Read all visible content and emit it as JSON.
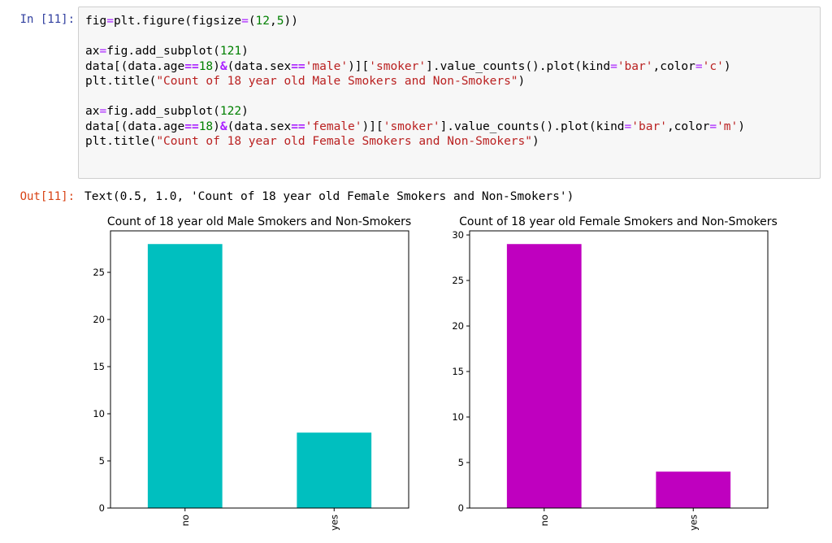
{
  "cell": {
    "in_prompt": "In [11]:",
    "out_prompt": "Out[11]:",
    "code_lines": [
      "fig=plt.figure(figsize=(12,5))",
      "",
      "ax=fig.add_subplot(121)",
      "data[(data.age==18)&(data.sex=='male')]['smoker'].value_counts().plot(kind='bar',color='c')",
      "plt.title(\"Count of 18 year old Male Smokers and Non-Smokers\")",
      "",
      "ax=fig.add_subplot(122)",
      "data[(data.age==18)&(data.sex=='female')]['smoker'].value_counts().plot(kind='bar',color='m')",
      "plt.title(\"Count of 18 year old Female Smokers and Non-Smokers\")"
    ],
    "output_text": "Text(0.5, 1.0, 'Count of 18 year old Female Smokers and Non-Smokers')"
  },
  "chart_data": [
    {
      "type": "bar",
      "title": "Count of 18 year old Male Smokers and Non-Smokers",
      "categories": [
        "no",
        "yes"
      ],
      "values": [
        28,
        8
      ],
      "color": "#00bfbf",
      "ylim": [
        0,
        29.4
      ],
      "yticks": [
        0,
        5,
        10,
        15,
        20,
        25
      ],
      "xlabel": "",
      "ylabel": "",
      "grid": false
    },
    {
      "type": "bar",
      "title": "Count of 18 year old Female Smokers and Non-Smokers",
      "categories": [
        "no",
        "yes"
      ],
      "values": [
        29,
        4
      ],
      "color": "#bf00bf",
      "ylim": [
        0,
        30.45
      ],
      "yticks": [
        0,
        5,
        10,
        15,
        20,
        25,
        30
      ],
      "xlabel": "",
      "ylabel": "",
      "grid": false
    }
  ]
}
